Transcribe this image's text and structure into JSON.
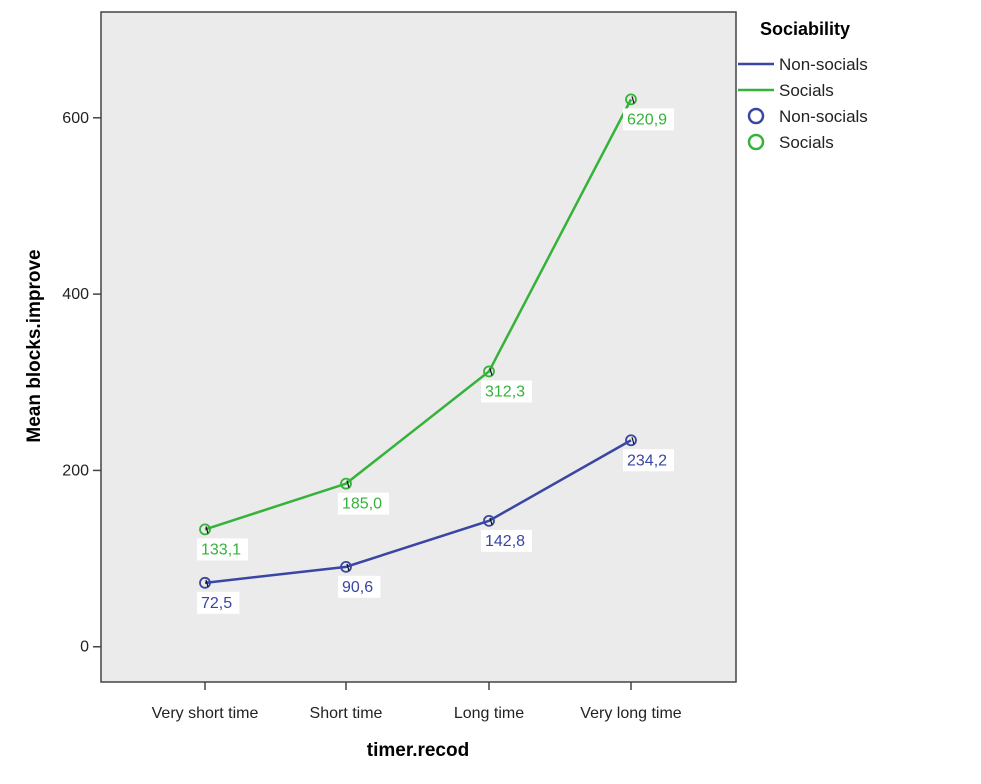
{
  "chart_data": {
    "type": "line",
    "xlabel": "timer.recod",
    "ylabel": "Mean blocks.improve",
    "categories": [
      "Very short time",
      "Short time",
      "Long time",
      "Very long time"
    ],
    "ylim": [
      -40,
      720
    ],
    "yticks": [
      0,
      200,
      400,
      600
    ],
    "grid": false,
    "legend_title": "Sociability",
    "legend_position": "right",
    "series": [
      {
        "name": "Non-socials",
        "color": "#3a46a3",
        "values": [
          72.5,
          90.6,
          142.8,
          234.2
        ],
        "labels": [
          "72,5",
          "90,6",
          "142,8",
          "234,2"
        ]
      },
      {
        "name": "Socials",
        "color": "#35b23a",
        "values": [
          133.1,
          185.0,
          312.3,
          620.9
        ],
        "labels": [
          "133,1",
          "185,0",
          "312,3",
          "620,9"
        ]
      }
    ],
    "legend_entries": [
      {
        "kind": "line",
        "name": "Non-socials",
        "color": "#3a46a3"
      },
      {
        "kind": "line",
        "name": "Socials",
        "color": "#35b23a"
      },
      {
        "kind": "marker",
        "name": "Non-socials",
        "color": "#3a46a3"
      },
      {
        "kind": "marker",
        "name": "Socials",
        "color": "#35b23a"
      }
    ],
    "plot_background": "#ebebeb"
  }
}
